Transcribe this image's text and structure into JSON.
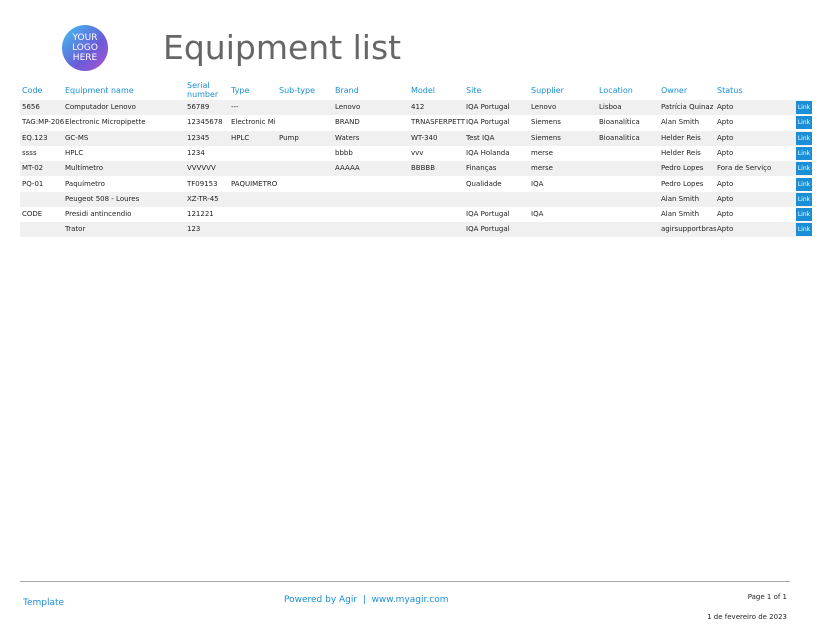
{
  "header": {
    "logo": [
      "YOUR",
      "LOGO",
      "HERE"
    ],
    "title": "Equipment list"
  },
  "table": {
    "columns": [
      "Code",
      "Equipment name",
      "Serial number",
      "Type",
      "Sub-type",
      "Brand",
      "Model",
      "Site",
      "Supplier",
      "Location",
      "Owner",
      "Status"
    ],
    "link_label": "Link",
    "rows": [
      [
        "5656",
        "Computador Lenovo",
        "56789",
        "---",
        null,
        "Lenovo",
        "412",
        "IQA Portugal",
        "Lenovo",
        "Lisboa",
        "Patrícia Quinaz",
        "Apto"
      ],
      [
        "TAG:MP-206",
        "Electronic Micropipette",
        "12345678",
        "Electronic Mi",
        null,
        "BRAND",
        "TRNASFERPETT",
        "IQA Portugal",
        "Siemens",
        "Bioanalítica",
        "Alan Smith",
        "Apto"
      ],
      [
        "EQ.123",
        "GC-MS",
        "12345",
        "HPLC",
        "Pump",
        "Waters",
        "WT-340",
        "Test IQA",
        "Siemens",
        "Bioanalitica",
        "Helder Reis",
        "Apto"
      ],
      [
        "ssss",
        "HPLC",
        "1234",
        null,
        null,
        "bbbb",
        "vvv",
        "IQA Holanda",
        "merse",
        null,
        "Helder Reis",
        "Apto"
      ],
      [
        "MT-02",
        "Multímetro",
        "VVVVVV",
        null,
        null,
        "AAAAA",
        "BBBBB",
        "Finanças",
        "merse",
        null,
        "Pedro Lopes",
        "Fora de Serviço"
      ],
      [
        "PQ-01",
        "Paquímetro",
        "TF09153",
        "PAQUIMETRO",
        null,
        null,
        null,
        "Qualidade",
        "IQA",
        null,
        "Pedro Lopes",
        "Apto"
      ],
      [
        null,
        "Peugeot 508 - Loures",
        "XZ-TR-45",
        null,
        null,
        null,
        null,
        null,
        null,
        null,
        "Alan Smith",
        "Apto"
      ],
      [
        "CODE",
        "Presidi antincendio",
        "121221",
        null,
        null,
        null,
        null,
        "IQA Portugal",
        "IQA",
        null,
        "Alan Smith",
        "Apto"
      ],
      [
        null,
        "Trator",
        "123",
        null,
        null,
        null,
        null,
        "IQA Portugal",
        null,
        null,
        "agirsupportbras",
        "Apto"
      ]
    ]
  },
  "footer": {
    "template": "Template",
    "powered": "Powered by Agir  |  www.myagir.com",
    "page": "Page 1 of 1",
    "date": "1 de fevereiro de 2023"
  }
}
